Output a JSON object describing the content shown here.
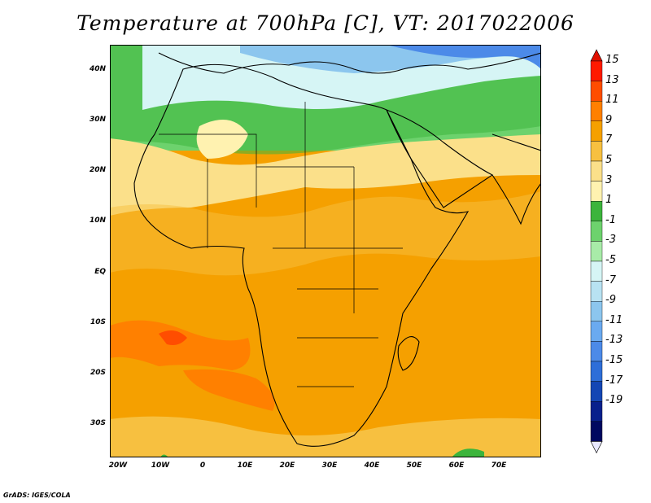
{
  "title": "Temperature at 700hPa [C], VT: 2017022006",
  "footer": "GrADS: IGES/COLA",
  "lat_labels": [
    "40N",
    "30N",
    "20N",
    "10N",
    "EQ",
    "10S",
    "20S",
    "30S"
  ],
  "lon_labels": [
    "20W",
    "10W",
    "0",
    "10E",
    "20E",
    "30E",
    "40E",
    "50E",
    "60E",
    "70E"
  ],
  "colorbar": {
    "labels": [
      "15",
      "13",
      "11",
      "9",
      "7",
      "5",
      "3",
      "1",
      "-1",
      "-3",
      "-5",
      "-7",
      "-9",
      "-11",
      "-13",
      "-15",
      "-17",
      "-19"
    ],
    "colors": [
      "#ff1a00",
      "#ff4d00",
      "#ff8000",
      "#f5a000",
      "#f7c040",
      "#fbe08a",
      "#fff2b0",
      "#3cb43c",
      "#6dd26d",
      "#a8eba8",
      "#d6f5f5",
      "#b8e2f2",
      "#8cc6ee",
      "#6aaaf0",
      "#4c8ae8",
      "#2e6ed8",
      "#1446b4",
      "#08208c",
      "#000860"
    ],
    "top_arrow": "#e01000",
    "bottom_arrow": "#e8e8ff"
  }
}
